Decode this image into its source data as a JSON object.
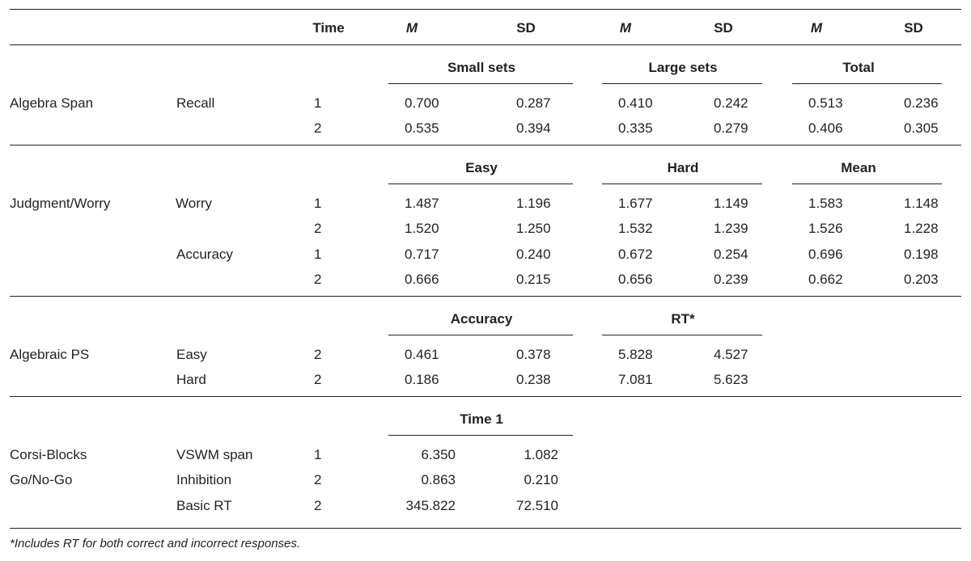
{
  "header": {
    "time": "Time",
    "m": "M",
    "sd": "SD"
  },
  "sections": {
    "algebra_span": {
      "task": "Algebra Span",
      "groups": [
        "Small sets",
        "Large sets",
        "Total"
      ],
      "rows": [
        {
          "measure": "Recall",
          "time": "1",
          "values": [
            "0.700",
            "0.287",
            "0.410",
            "0.242",
            "0.513",
            "0.236"
          ]
        },
        {
          "measure": "",
          "time": "2",
          "values": [
            "0.535",
            "0.394",
            "0.335",
            "0.279",
            "0.406",
            "0.305"
          ]
        }
      ]
    },
    "judgment": {
      "task": "Judgment/Worry",
      "groups": [
        "Easy",
        "Hard",
        "Mean"
      ],
      "rows": [
        {
          "measure": "Worry",
          "time": "1",
          "values": [
            "1.487",
            "1.196",
            "1.677",
            "1.149",
            "1.583",
            "1.148"
          ]
        },
        {
          "measure": "",
          "time": "2",
          "values": [
            "1.520",
            "1.250",
            "1.532",
            "1.239",
            "1.526",
            "1.228"
          ]
        },
        {
          "measure": "Accuracy",
          "time": "1",
          "values": [
            "0.717",
            "0.240",
            "0.672",
            "0.254",
            "0.696",
            "0.198"
          ]
        },
        {
          "measure": "",
          "time": "2",
          "values": [
            "0.666",
            "0.215",
            "0.656",
            "0.239",
            "0.662",
            "0.203"
          ]
        }
      ]
    },
    "algebraic_ps": {
      "task": "Algebraic PS",
      "groups": [
        "Accuracy",
        "RT*"
      ],
      "rows": [
        {
          "measure": "Easy",
          "time": "2",
          "values": [
            "0.461",
            "0.378",
            "5.828",
            "4.527"
          ]
        },
        {
          "measure": "Hard",
          "time": "2",
          "values": [
            "0.186",
            "0.238",
            "7.081",
            "5.623"
          ]
        }
      ]
    },
    "corsi": {
      "groups": [
        "Time 1"
      ],
      "rows": [
        {
          "task": "Corsi-Blocks",
          "measure": "VSWM span",
          "time": "1",
          "values": [
            "6.350",
            "1.082"
          ]
        },
        {
          "task": "Go/No-Go",
          "measure": "Inhibition",
          "time": "2",
          "values": [
            "0.863",
            "0.210"
          ]
        },
        {
          "task": "",
          "measure": "Basic RT",
          "time": "2",
          "values": [
            "345.822",
            "72.510"
          ]
        }
      ]
    }
  },
  "footnote": "*Includes RT for both correct and incorrect responses."
}
